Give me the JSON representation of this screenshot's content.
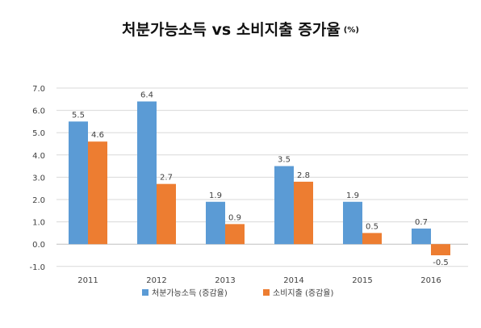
{
  "chart_data": {
    "type": "bar",
    "title": "처분가능소득 vs 소비지출 증가율",
    "title_unit": "(%)",
    "categories": [
      "2011",
      "2012",
      "2013",
      "2014",
      "2015",
      "2016"
    ],
    "series": [
      {
        "name": "처분가능소득 (증감율)",
        "color": "#5B9BD5",
        "values": [
          5.5,
          6.4,
          1.9,
          3.5,
          1.9,
          0.7
        ]
      },
      {
        "name": "소비지출 (증감율)",
        "color": "#ED7D31",
        "values": [
          4.6,
          2.7,
          0.9,
          2.8,
          0.5,
          -0.5
        ]
      }
    ],
    "data_labels": [
      [
        "5.5",
        "6.4",
        "1.9",
        "3.5",
        "1.9",
        "0.7"
      ],
      [
        "4.6",
        "2.7",
        "0.9",
        "2.8",
        "0.5",
        "-0.5"
      ]
    ],
    "ylim": [
      -1.0,
      7.0
    ],
    "yticks": [
      "-1.0",
      "0.0",
      "1.0",
      "2.0",
      "3.0",
      "4.0",
      "5.0",
      "6.0",
      "7.0"
    ],
    "ytick_values": [
      -1,
      0,
      1,
      2,
      3,
      4,
      5,
      6,
      7
    ],
    "grid": true,
    "legend_position": "bottom"
  }
}
